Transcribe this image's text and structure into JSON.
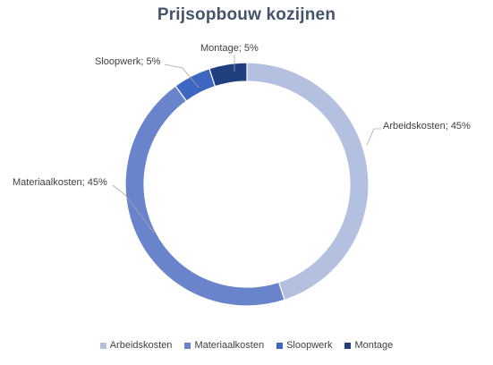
{
  "chart_data": {
    "type": "pie",
    "variant": "donut",
    "title": "Prijsopbouw kozijnen",
    "categories": [
      "Arbeidskosten",
      "Materiaalkosten",
      "Sloopwerk",
      "Montage"
    ],
    "values": [
      45,
      45,
      5,
      5
    ],
    "unit": "%",
    "data_labels": [
      "Arbeidskosten; 45%",
      "Materiaalkosten; 45%",
      "Sloopwerk; 5%",
      "Montage; 5%"
    ],
    "colors": [
      "#b4c0e0",
      "#6a84cc",
      "#3e67c1",
      "#1f3f7f"
    ],
    "legend_position": "bottom"
  }
}
